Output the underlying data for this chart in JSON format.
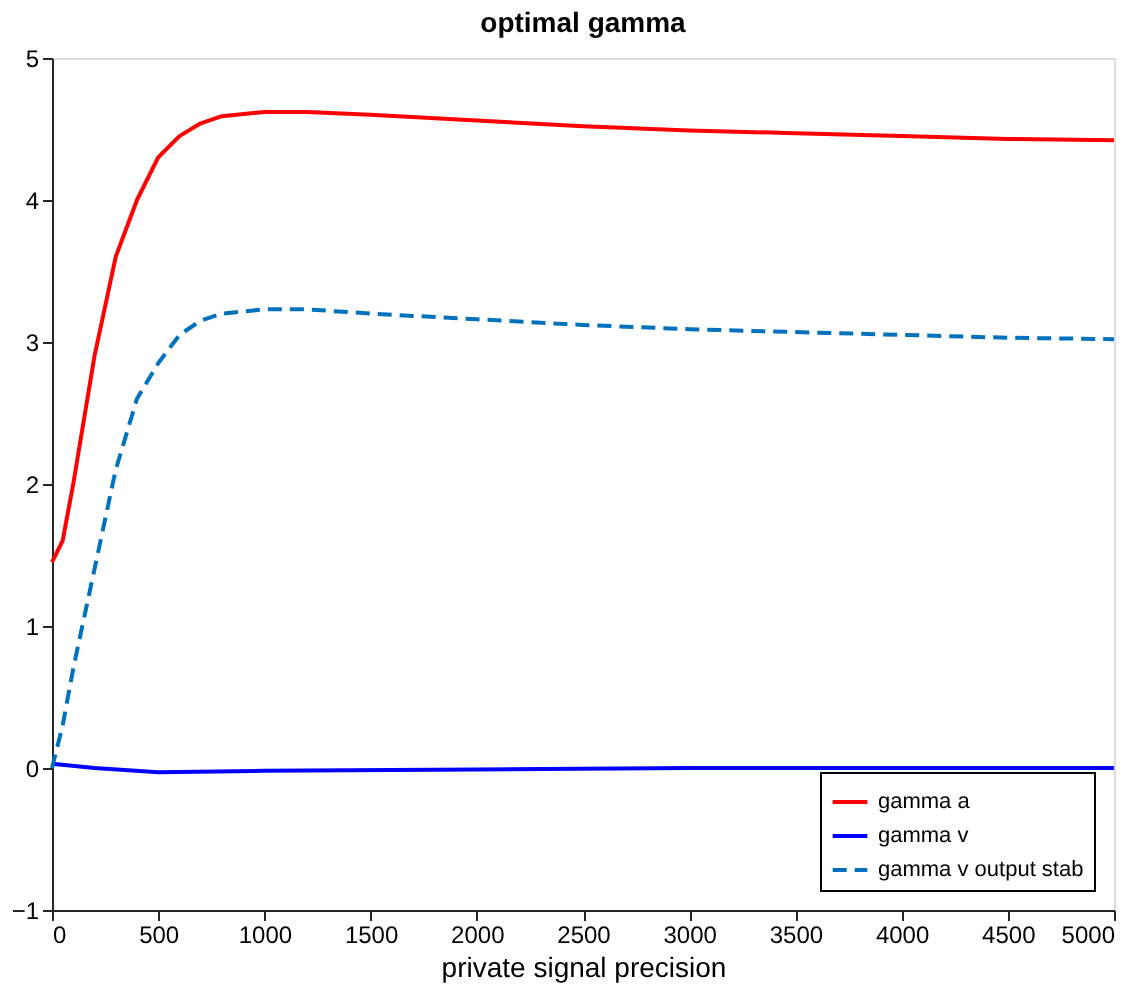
{
  "chart_data": {
    "type": "line",
    "title": "optimal gamma",
    "xlabel": "private signal precision",
    "xlim": [
      0,
      5000
    ],
    "xticks": [
      0,
      500,
      1000,
      1500,
      2000,
      2500,
      3000,
      3500,
      4000,
      4500,
      5000
    ],
    "ylim": [
      -1,
      5
    ],
    "yticks": [
      -1,
      0,
      1,
      2,
      3,
      4,
      5
    ],
    "grid": false,
    "legend": "bottom right",
    "marker": "none",
    "series": [
      {
        "name": "gamma a",
        "color": "#ff0000",
        "line_style": "solid",
        "x": [
          0,
          50,
          100,
          200,
          300,
          400,
          500,
          600,
          700,
          800,
          1000,
          1200,
          1500,
          2000,
          2500,
          3000,
          3500,
          4000,
          4500,
          5000
        ],
        "values": [
          1.45,
          1.6,
          2.0,
          2.9,
          3.6,
          4.0,
          4.3,
          4.45,
          4.54,
          4.59,
          4.62,
          4.62,
          4.6,
          4.56,
          4.52,
          4.49,
          4.47,
          4.45,
          4.43,
          4.42
        ]
      },
      {
        "name": "gamma v",
        "color": "#0000ff",
        "line_style": "solid",
        "x": [
          0,
          200,
          500,
          1000,
          2000,
          3000,
          5000
        ],
        "values": [
          0.03,
          0.0,
          -0.03,
          -0.02,
          -0.01,
          0.0,
          0.0
        ]
      },
      {
        "name": "gamma v output stab",
        "color": "#0072bd",
        "line_style": "dashed",
        "x": [
          0,
          50,
          100,
          200,
          300,
          400,
          500,
          600,
          700,
          800,
          1000,
          1200,
          1500,
          2000,
          2500,
          3000,
          3500,
          4000,
          4500,
          5000
        ],
        "values": [
          0.0,
          0.3,
          0.7,
          1.4,
          2.1,
          2.6,
          2.85,
          3.05,
          3.15,
          3.2,
          3.23,
          3.23,
          3.2,
          3.16,
          3.12,
          3.09,
          3.07,
          3.05,
          3.03,
          3.02
        ]
      }
    ]
  }
}
